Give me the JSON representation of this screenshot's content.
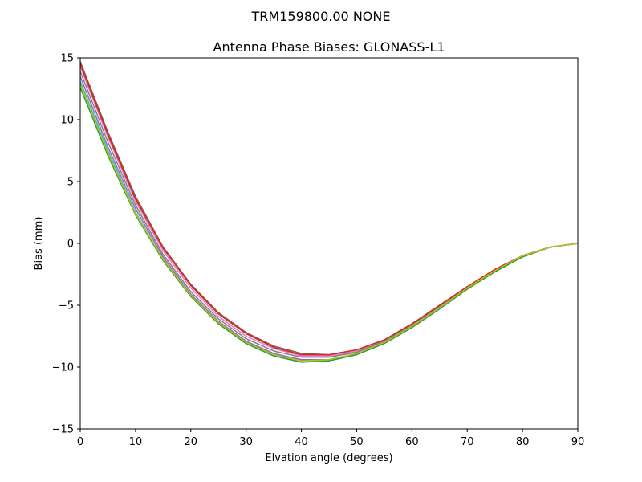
{
  "figure": {
    "suptitle": "TRM159800.00    NONE"
  },
  "chart_data": {
    "type": "line",
    "title": "Antenna Phase Biases: GLONASS-L1",
    "xlabel": "Elvation angle (degrees)",
    "ylabel": "Bias (mm)",
    "xlim": [
      0,
      90
    ],
    "ylim": [
      -15,
      15
    ],
    "xticks": [
      0,
      10,
      20,
      30,
      40,
      50,
      60,
      70,
      80,
      90
    ],
    "yticks": [
      -15,
      -10,
      -5,
      0,
      5,
      10,
      15
    ],
    "xtick_labels": [
      "0",
      "10",
      "20",
      "30",
      "40",
      "50",
      "60",
      "70",
      "80",
      "90"
    ],
    "ytick_labels": [
      "−15",
      "−10",
      "−5",
      "0",
      "5",
      "10",
      "15"
    ],
    "grid": false,
    "x": [
      0,
      5,
      10,
      15,
      20,
      25,
      30,
      35,
      40,
      45,
      50,
      55,
      60,
      65,
      70,
      75,
      80,
      85,
      90
    ],
    "series": [
      {
        "color": "#8c564b",
        "values": [
          14.7,
          9.0,
          3.8,
          -0.3,
          -3.3,
          -5.6,
          -7.2,
          -8.3,
          -8.9,
          -9.0,
          -8.6,
          -7.8,
          -6.5,
          -5.0,
          -3.5,
          -2.1,
          -1.0,
          -0.3,
          0.0
        ]
      },
      {
        "color": "#e377c2",
        "values": [
          14.3,
          8.6,
          3.4,
          -0.6,
          -3.6,
          -5.9,
          -7.5,
          -8.5,
          -9.1,
          -9.1,
          -8.7,
          -7.9,
          -6.6,
          -5.1,
          -3.6,
          -2.2,
          -1.0,
          -0.3,
          0.0
        ]
      },
      {
        "color": "#7f7f7f",
        "values": [
          13.9,
          8.2,
          3.1,
          -0.9,
          -3.9,
          -6.1,
          -7.7,
          -8.7,
          -9.2,
          -9.2,
          -8.8,
          -7.9,
          -6.6,
          -5.1,
          -3.6,
          -2.2,
          -1.0,
          -0.3,
          0.0
        ]
      },
      {
        "color": "#9467bd",
        "values": [
          13.5,
          7.8,
          2.8,
          -1.1,
          -4.1,
          -6.3,
          -7.9,
          -8.9,
          -9.4,
          -9.4,
          -8.9,
          -8.0,
          -6.7,
          -5.2,
          -3.6,
          -2.2,
          -1.0,
          -0.3,
          0.0
        ]
      },
      {
        "color": "#17becf",
        "values": [
          13.1,
          7.5,
          2.5,
          -1.3,
          -4.2,
          -6.4,
          -8.0,
          -9.0,
          -9.5,
          -9.4,
          -9.0,
          -8.0,
          -6.7,
          -5.2,
          -3.6,
          -2.2,
          -1.0,
          -0.3,
          0.0
        ]
      },
      {
        "color": "#d62728",
        "values": [
          14.5,
          8.8,
          3.6,
          -0.4,
          -3.4,
          -5.7,
          -7.3,
          -8.4,
          -9.0,
          -9.0,
          -8.6,
          -7.8,
          -6.5,
          -5.0,
          -3.5,
          -2.1,
          -1.0,
          -0.3,
          0.0
        ]
      },
      {
        "color": "#2ca02c",
        "values": [
          12.6,
          7.1,
          2.3,
          -1.4,
          -4.3,
          -6.5,
          -8.1,
          -9.1,
          -9.6,
          -9.5,
          -9.0,
          -8.1,
          -6.8,
          -5.3,
          -3.7,
          -2.3,
          -1.1,
          -0.3,
          0.0
        ]
      },
      {
        "color": "#bcbd22",
        "values": [
          12.9,
          7.3,
          2.4,
          -1.3,
          -4.2,
          -6.4,
          -8.0,
          -9.0,
          -9.5,
          -9.4,
          -8.9,
          -8.0,
          -6.7,
          -5.2,
          -3.6,
          -2.2,
          -1.0,
          -0.3,
          0.0
        ]
      }
    ]
  }
}
